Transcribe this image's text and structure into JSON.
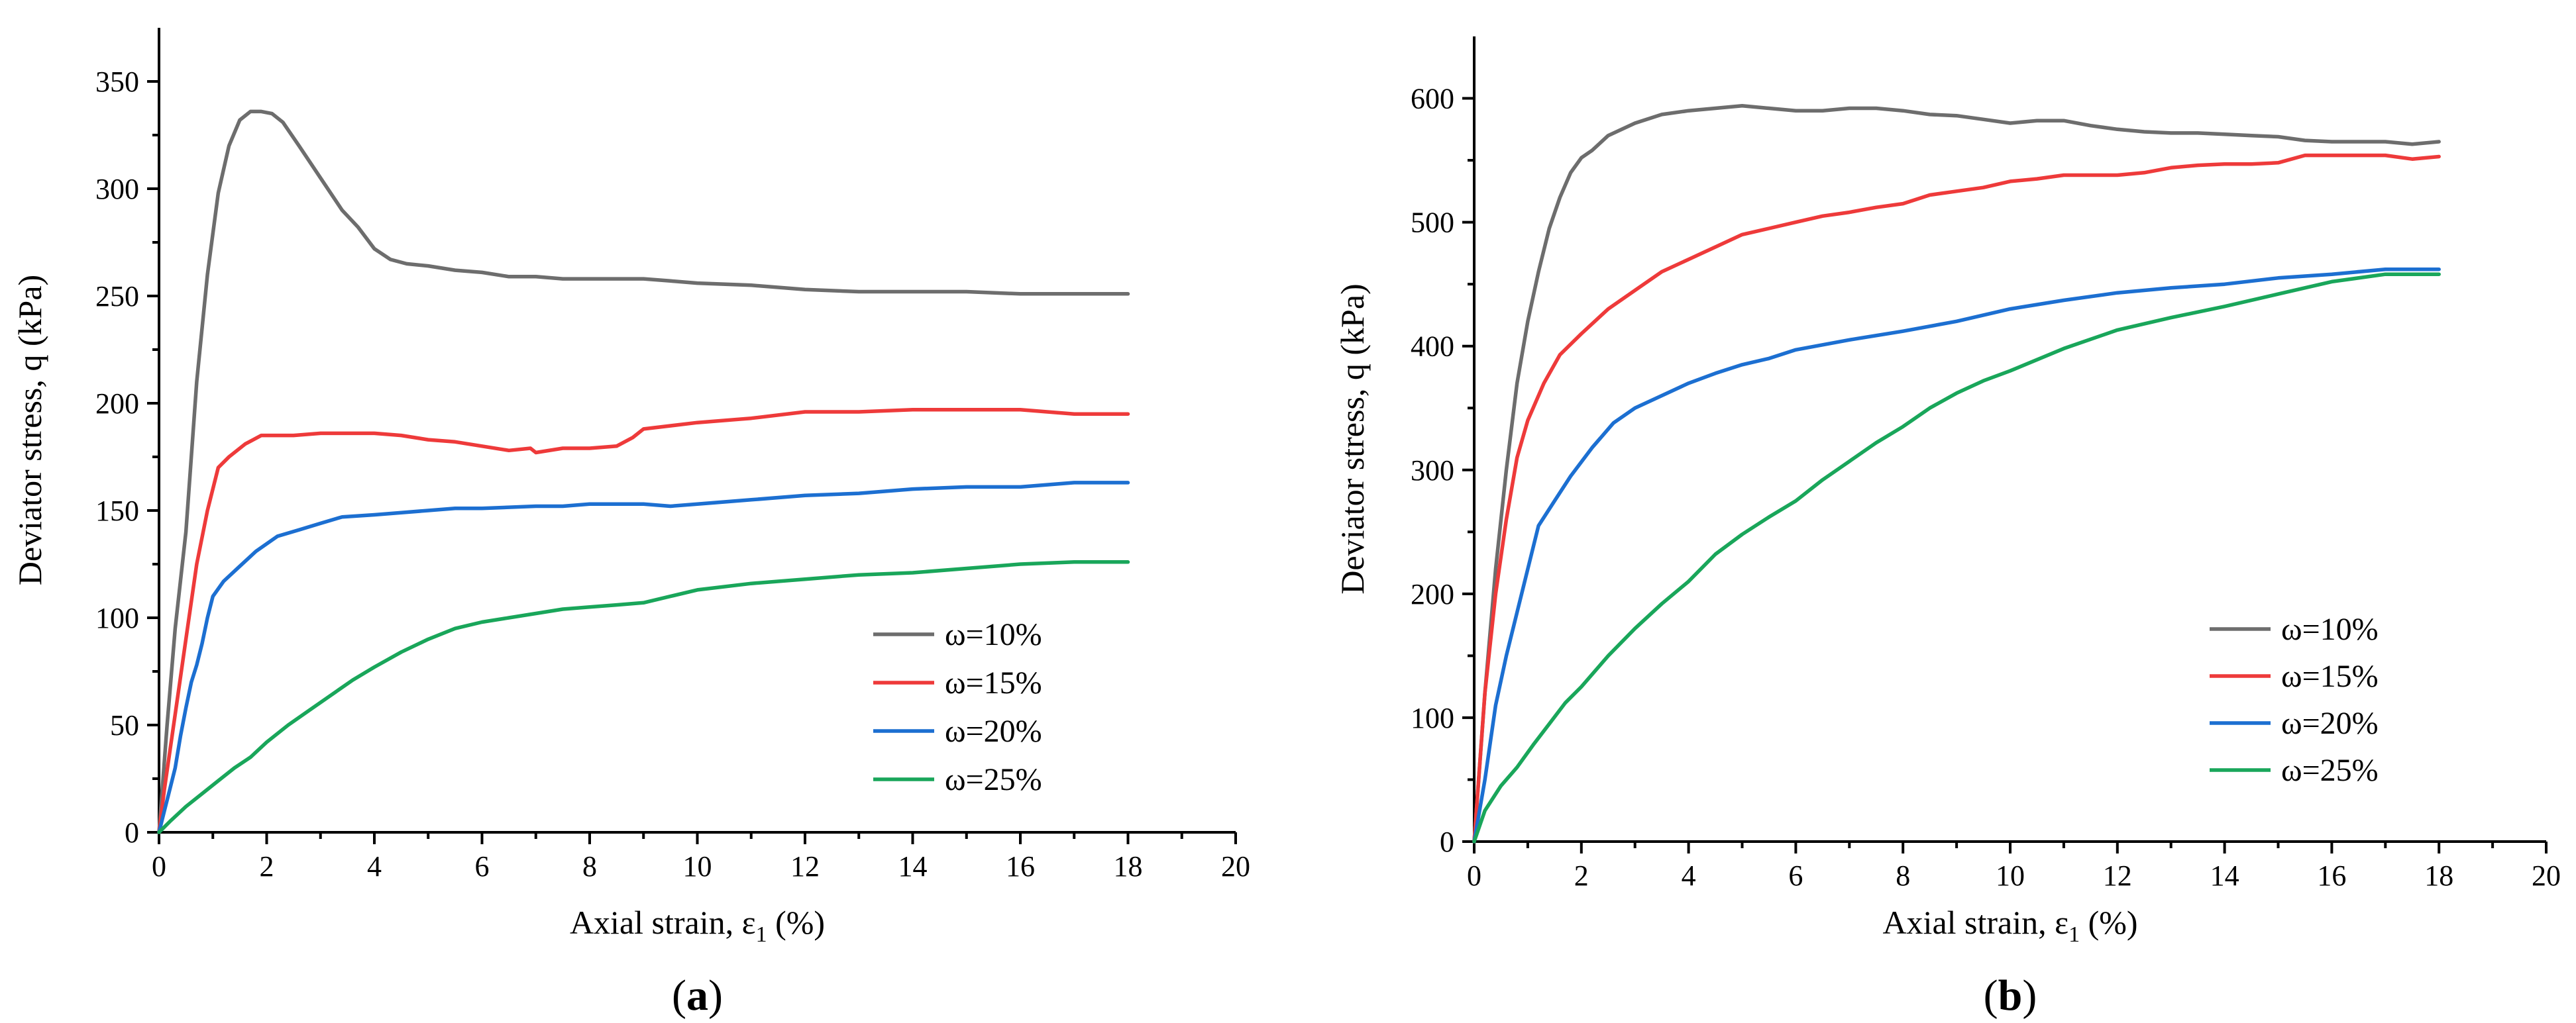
{
  "chart_data": [
    {
      "type": "line",
      "panel_label": "a",
      "xlabel_main": "Axial strain, ε",
      "xlabel_sub": "1",
      "xlabel_unit": " (%)",
      "ylabel": "Deviator stress, q (kPa)",
      "xlim": [
        0,
        20
      ],
      "ylim": [
        0,
        375
      ],
      "xticks": [
        0,
        2,
        4,
        6,
        8,
        10,
        12,
        14,
        16,
        18,
        20
      ],
      "yticks": [
        0,
        50,
        100,
        150,
        200,
        250,
        300,
        350
      ],
      "legend_position": "bottom-right",
      "series": [
        {
          "name": "ω=10%",
          "color": "#6d6d6d",
          "x": [
            0,
            0.15,
            0.3,
            0.5,
            0.7,
            0.9,
            1.1,
            1.3,
            1.5,
            1.7,
            1.9,
            2.1,
            2.3,
            2.6,
            3.0,
            3.4,
            3.7,
            4.0,
            4.3,
            4.6,
            5.0,
            5.5,
            6.0,
            6.5,
            7.0,
            7.5,
            8.0,
            8.5,
            9.0,
            9.5,
            10.0,
            11.0,
            12.0,
            13.0,
            14.0,
            15.0,
            16.0,
            17.0,
            18.0
          ],
          "y": [
            0,
            50,
            95,
            140,
            210,
            260,
            298,
            320,
            332,
            336,
            336,
            335,
            331,
            320,
            305,
            290,
            282,
            272,
            267,
            265,
            264,
            262,
            261,
            259,
            259,
            258,
            258,
            258,
            258,
            257,
            256,
            255,
            253,
            252,
            252,
            252,
            251,
            251,
            251
          ]
        },
        {
          "name": "ω=15%",
          "color": "#ee3a3a",
          "x": [
            0,
            0.1,
            0.3,
            0.5,
            0.7,
            0.9,
            1.1,
            1.3,
            1.6,
            1.9,
            2.5,
            3.0,
            3.5,
            4.0,
            4.5,
            5.0,
            5.5,
            6.0,
            6.5,
            6.9,
            7.0,
            7.5,
            8.0,
            8.5,
            8.8,
            9.0,
            10.0,
            11.0,
            12.0,
            13.0,
            14.0,
            15.0,
            16.0,
            17.0,
            18.0
          ],
          "y": [
            0,
            20,
            55,
            90,
            125,
            150,
            170,
            175,
            181,
            185,
            185,
            186,
            186,
            186,
            185,
            183,
            182,
            180,
            178,
            179,
            177,
            179,
            179,
            180,
            184,
            188,
            191,
            193,
            196,
            196,
            197,
            197,
            197,
            195,
            195
          ]
        },
        {
          "name": "ω=20%",
          "color": "#1c6fd1",
          "x": [
            0,
            0.1,
            0.2,
            0.3,
            0.4,
            0.5,
            0.6,
            0.7,
            0.8,
            0.9,
            1.0,
            1.2,
            1.5,
            1.8,
            2.2,
            2.6,
            3.0,
            3.4,
            4.0,
            4.5,
            5.0,
            5.5,
            6.0,
            7.0,
            7.5,
            8.0,
            8.5,
            9.0,
            9.5,
            10.0,
            11.0,
            12.0,
            13.0,
            14.0,
            15.0,
            16.0,
            16.5,
            17.0,
            18.0
          ],
          "y": [
            0,
            10,
            20,
            30,
            45,
            58,
            70,
            78,
            88,
            100,
            110,
            117,
            124,
            131,
            138,
            141,
            144,
            147,
            148,
            149,
            150,
            151,
            151,
            152,
            152,
            153,
            153,
            153,
            152,
            153,
            155,
            157,
            158,
            160,
            161,
            161,
            162,
            163,
            163
          ]
        },
        {
          "name": "ω=25%",
          "color": "#19a65a",
          "x": [
            0,
            0.2,
            0.5,
            0.8,
            1.1,
            1.4,
            1.7,
            2.0,
            2.4,
            2.8,
            3.2,
            3.6,
            4.0,
            4.5,
            5.0,
            5.5,
            6.0,
            6.5,
            7.0,
            7.5,
            8.0,
            8.5,
            9.0,
            9.5,
            10.0,
            11.0,
            12.0,
            13.0,
            14.0,
            15.0,
            16.0,
            17.0,
            18.0
          ],
          "y": [
            0,
            5,
            12,
            18,
            24,
            30,
            35,
            42,
            50,
            57,
            64,
            71,
            77,
            84,
            90,
            95,
            98,
            100,
            102,
            104,
            105,
            106,
            107,
            110,
            113,
            116,
            118,
            120,
            121,
            123,
            125,
            126,
            126
          ]
        }
      ]
    },
    {
      "type": "line",
      "panel_label": "b",
      "xlabel_main": "Axial strain, ε",
      "xlabel_sub": "1",
      "xlabel_unit": " (%)",
      "ylabel": "Deviator stress, q (kPa)",
      "xlim": [
        0,
        20
      ],
      "ylim": [
        0,
        650
      ],
      "xticks": [
        0,
        2,
        4,
        6,
        8,
        10,
        12,
        14,
        16,
        18,
        20
      ],
      "yticks": [
        0,
        100,
        200,
        300,
        400,
        500,
        600
      ],
      "legend_position": "bottom-right",
      "series": [
        {
          "name": "ω=10%",
          "color": "#6d6d6d",
          "x": [
            0,
            0.2,
            0.4,
            0.6,
            0.8,
            1.0,
            1.2,
            1.4,
            1.6,
            1.8,
            2.0,
            2.2,
            2.5,
            3.0,
            3.5,
            4.0,
            4.5,
            5.0,
            5.5,
            6.0,
            6.5,
            7.0,
            7.5,
            8.0,
            8.5,
            9.0,
            9.5,
            10.0,
            10.5,
            11.0,
            11.5,
            12.0,
            12.5,
            13.0,
            13.5,
            14.0,
            14.5,
            15.0,
            15.5,
            16.0,
            16.5,
            17.0,
            17.5,
            18.0
          ],
          "y": [
            0,
            120,
            220,
            300,
            370,
            420,
            460,
            495,
            520,
            540,
            552,
            558,
            570,
            580,
            587,
            590,
            592,
            594,
            592,
            590,
            590,
            592,
            592,
            590,
            587,
            586,
            583,
            580,
            582,
            582,
            578,
            575,
            573,
            572,
            572,
            571,
            570,
            569,
            566,
            565,
            565,
            565,
            563,
            565
          ]
        },
        {
          "name": "ω=15%",
          "color": "#ee3a3a",
          "x": [
            0,
            0.2,
            0.4,
            0.6,
            0.8,
            1.0,
            1.3,
            1.6,
            2.0,
            2.5,
            3.0,
            3.5,
            4.0,
            4.5,
            5.0,
            5.5,
            6.0,
            6.5,
            7.0,
            7.5,
            8.0,
            8.5,
            9.0,
            9.5,
            10.0,
            10.5,
            11.0,
            11.5,
            12.0,
            12.5,
            13.0,
            13.5,
            14.0,
            14.5,
            15.0,
            15.5,
            16.0,
            16.5,
            17.0,
            17.5,
            18.0
          ],
          "y": [
            0,
            120,
            200,
            260,
            310,
            340,
            370,
            393,
            410,
            430,
            445,
            460,
            470,
            480,
            490,
            495,
            500,
            505,
            508,
            512,
            515,
            522,
            525,
            528,
            533,
            535,
            538,
            538,
            538,
            540,
            544,
            546,
            547,
            547,
            548,
            554,
            554,
            554,
            554,
            551,
            553
          ]
        },
        {
          "name": "ω=20%",
          "color": "#1c6fd1",
          "x": [
            0,
            0.2,
            0.4,
            0.6,
            0.8,
            1.0,
            1.2,
            1.5,
            1.8,
            2.2,
            2.6,
            3.0,
            3.5,
            4.0,
            4.5,
            5.0,
            5.5,
            6.0,
            7.0,
            8.0,
            9.0,
            10.0,
            11.0,
            12.0,
            13.0,
            14.0,
            15.0,
            16.0,
            17.0,
            18.0
          ],
          "y": [
            0,
            50,
            110,
            150,
            185,
            220,
            255,
            275,
            295,
            318,
            338,
            350,
            360,
            370,
            378,
            385,
            390,
            397,
            405,
            412,
            420,
            430,
            437,
            443,
            447,
            450,
            455,
            458,
            462,
            462
          ]
        },
        {
          "name": "ω=25%",
          "color": "#19a65a",
          "x": [
            0,
            0.2,
            0.5,
            0.8,
            1.1,
            1.4,
            1.7,
            2.0,
            2.5,
            3.0,
            3.5,
            4.0,
            4.5,
            5.0,
            5.5,
            6.0,
            6.5,
            7.0,
            7.5,
            8.0,
            8.5,
            9.0,
            9.5,
            10.0,
            11.0,
            12.0,
            13.0,
            14.0,
            15.0,
            16.0,
            17.0,
            18.0
          ],
          "y": [
            0,
            25,
            45,
            60,
            78,
            95,
            112,
            125,
            150,
            172,
            192,
            210,
            232,
            248,
            262,
            275,
            292,
            307,
            322,
            335,
            350,
            362,
            372,
            380,
            398,
            413,
            423,
            432,
            442,
            452,
            458,
            458
          ]
        }
      ]
    }
  ]
}
